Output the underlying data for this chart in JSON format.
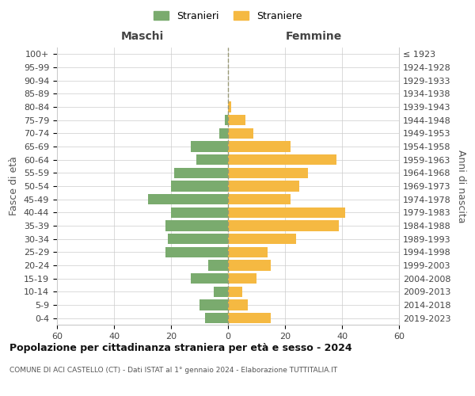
{
  "age_groups": [
    "0-4",
    "5-9",
    "10-14",
    "15-19",
    "20-24",
    "25-29",
    "30-34",
    "35-39",
    "40-44",
    "45-49",
    "50-54",
    "55-59",
    "60-64",
    "65-69",
    "70-74",
    "75-79",
    "80-84",
    "85-89",
    "90-94",
    "95-99",
    "100+"
  ],
  "birth_years": [
    "2019-2023",
    "2014-2018",
    "2009-2013",
    "2004-2008",
    "1999-2003",
    "1994-1998",
    "1989-1993",
    "1984-1988",
    "1979-1983",
    "1974-1978",
    "1969-1973",
    "1964-1968",
    "1959-1963",
    "1954-1958",
    "1949-1953",
    "1944-1948",
    "1939-1943",
    "1934-1938",
    "1929-1933",
    "1924-1928",
    "≤ 1923"
  ],
  "maschi": [
    8,
    10,
    5,
    13,
    7,
    22,
    21,
    22,
    20,
    28,
    20,
    19,
    11,
    13,
    3,
    1,
    0,
    0,
    0,
    0,
    0
  ],
  "femmine": [
    15,
    7,
    5,
    10,
    15,
    14,
    24,
    39,
    41,
    22,
    25,
    28,
    38,
    22,
    9,
    6,
    1,
    0,
    0,
    0,
    0
  ],
  "male_color": "#7aab6e",
  "female_color": "#f5b942",
  "title": "Popolazione per cittadinanza straniera per età e sesso - 2024",
  "subtitle": "COMUNE DI ACI CASTELLO (CT) - Dati ISTAT al 1° gennaio 2024 - Elaborazione TUTTITALIA.IT",
  "xlabel_maschi": "Maschi",
  "xlabel_femmine": "Femmine",
  "ylabel_left": "Fasce di età",
  "ylabel_right": "Anni di nascita",
  "legend_stranieri": "Stranieri",
  "legend_straniere": "Straniere",
  "xlim": 60,
  "background_color": "#ffffff",
  "grid_color": "#cccccc",
  "bar_height": 0.8
}
